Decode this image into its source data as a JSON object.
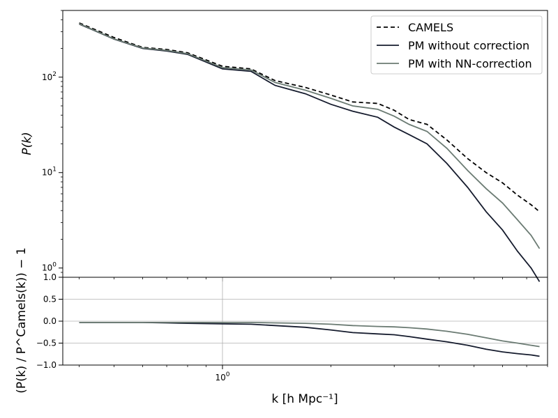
{
  "chart_data": [
    {
      "type": "line",
      "panel": "top",
      "ylabel": "P(k)",
      "xscale": "log",
      "yscale": "log",
      "xlim": [
        0.36,
        8.0
      ],
      "ylim": [
        0.8,
        500
      ],
      "yticks": [
        {
          "value": 1,
          "label_base": "10",
          "label_exp": "0"
        },
        {
          "value": 10,
          "label_base": "10",
          "label_exp": "1"
        },
        {
          "value": 100,
          "label_base": "10",
          "label_exp": "2"
        }
      ],
      "grid": false,
      "legend_position": "top-right",
      "x": [
        0.4,
        0.5,
        0.6,
        0.7,
        0.8,
        1.0,
        1.2,
        1.4,
        1.7,
        2.0,
        2.3,
        2.7,
        3.0,
        3.3,
        3.7,
        4.2,
        4.8,
        5.4,
        6.0,
        6.6,
        7.2,
        7.6
      ],
      "series": [
        {
          "name": "CAMELS",
          "color": "#000000",
          "dash": "dashed",
          "values": [
            370,
            260,
            205,
            195,
            180,
            130,
            122,
            92,
            78,
            65,
            55,
            53,
            45,
            36,
            32,
            22,
            14,
            10,
            7.8,
            5.8,
            4.6,
            3.9
          ]
        },
        {
          "name": "PM without correction",
          "color": "#151b2d",
          "dash": "solid",
          "values": [
            360,
            250,
            200,
            188,
            173,
            122,
            115,
            82,
            67,
            52,
            44,
            38,
            30,
            25,
            20,
            12.5,
            7.0,
            3.9,
            2.5,
            1.5,
            1.0,
            0.72
          ]
        },
        {
          "name": "PM with NN-correction",
          "color": "#6b7b73",
          "dash": "solid",
          "values": [
            363,
            252,
            202,
            191,
            176,
            126,
            119,
            88,
            73,
            60,
            50,
            46,
            39,
            32,
            27,
            18,
            10.5,
            6.8,
            4.8,
            3.2,
            2.2,
            1.6
          ]
        }
      ]
    },
    {
      "type": "line",
      "panel": "bottom",
      "xlabel": "k [h Mpc⁻¹]",
      "ylabel": "(P(k) / P^Camels(k)) − 1",
      "xscale": "log",
      "xlim": [
        0.36,
        8.0
      ],
      "ylim": [
        -1.0,
        1.0
      ],
      "yticks": [
        "1.0",
        "0.5",
        "0.0",
        "−0.5",
        "−1.0"
      ],
      "xticks": [
        {
          "value": 1,
          "label_base": "10",
          "label_exp": "0"
        }
      ],
      "grid": true,
      "x": [
        0.4,
        0.5,
        0.6,
        0.7,
        0.8,
        1.0,
        1.2,
        1.4,
        1.7,
        2.0,
        2.3,
        2.7,
        3.0,
        3.3,
        3.7,
        4.2,
        4.8,
        5.4,
        6.0,
        6.6,
        7.2,
        7.6
      ],
      "series": [
        {
          "name": "PM without correction",
          "color": "#151b2d",
          "values": [
            -0.03,
            -0.03,
            -0.03,
            -0.04,
            -0.05,
            -0.06,
            -0.07,
            -0.1,
            -0.14,
            -0.2,
            -0.26,
            -0.29,
            -0.31,
            -0.35,
            -0.41,
            -0.47,
            -0.55,
            -0.64,
            -0.7,
            -0.74,
            -0.77,
            -0.8
          ]
        },
        {
          "name": "PM with NN-correction",
          "color": "#6b7b73",
          "values": [
            -0.03,
            -0.03,
            -0.03,
            -0.03,
            -0.03,
            -0.03,
            -0.03,
            -0.04,
            -0.05,
            -0.07,
            -0.1,
            -0.12,
            -0.13,
            -0.15,
            -0.18,
            -0.23,
            -0.3,
            -0.38,
            -0.45,
            -0.5,
            -0.55,
            -0.58
          ]
        }
      ]
    }
  ]
}
